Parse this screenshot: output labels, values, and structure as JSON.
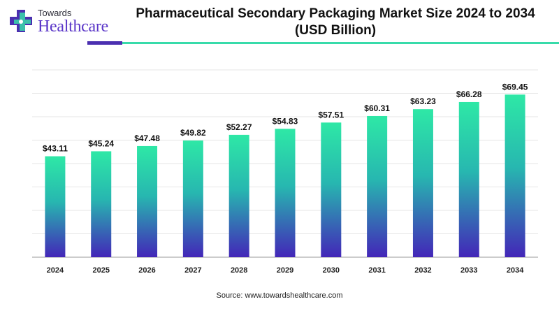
{
  "logo": {
    "line1": "Towards",
    "line2": "Healthcare",
    "icon": "medical-cross-icon"
  },
  "title_line1": "Pharmaceutical Secondary Packaging Market Size 2024 to 2034",
  "title_line2": "(USD Billion)",
  "source": "Source: www.towardshealthcare.com",
  "colors": {
    "bar_top": "#2ee8a6",
    "bar_mid": "#27b7b0",
    "bar_bottom": "#4326b8",
    "accent_dark": "#4b2fb0",
    "accent_teal": "#38dbaa",
    "gridline": "#e6e6e6"
  },
  "chart_data": {
    "type": "bar",
    "title": "Pharmaceutical Secondary Packaging Market Size 2024 to 2034 (USD Billion)",
    "categories": [
      "2024",
      "2025",
      "2026",
      "2027",
      "2028",
      "2029",
      "2030",
      "2031",
      "2032",
      "2033",
      "2034"
    ],
    "values": [
      43.11,
      45.24,
      47.48,
      49.82,
      52.27,
      54.83,
      57.51,
      60.31,
      63.23,
      66.28,
      69.45
    ],
    "data_labels": [
      "$43.11",
      "$45.24",
      "$47.48",
      "$49.82",
      "$52.27",
      "$54.83",
      "$57.51",
      "$60.31",
      "$63.23",
      "$66.28",
      "$69.45"
    ],
    "xlabel": "",
    "ylabel": "",
    "ylim": [
      0,
      80
    ],
    "grid": true,
    "legend": "none"
  }
}
